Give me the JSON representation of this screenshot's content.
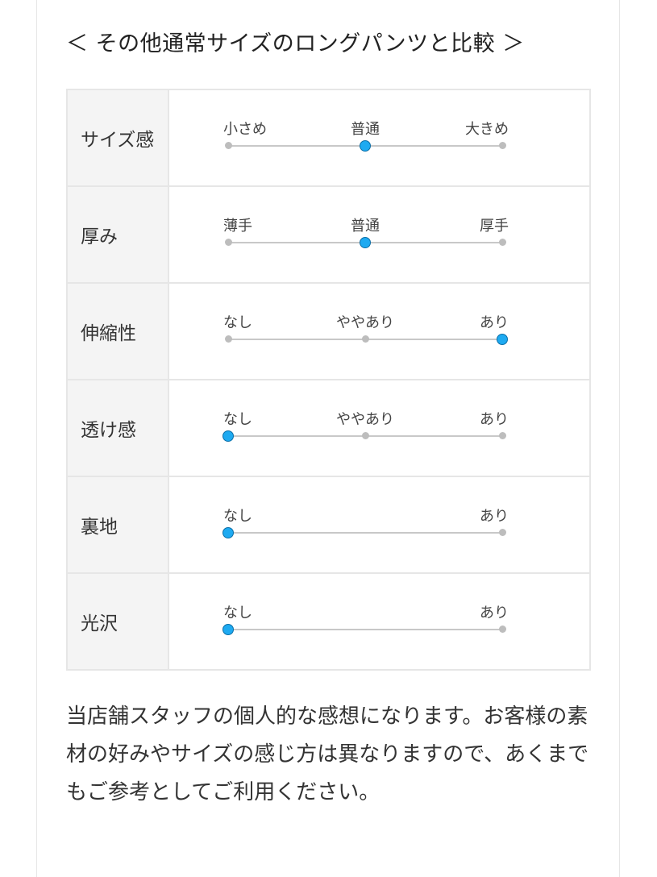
{
  "title": "＜ その他通常サイズのロングパンツと比較 ＞",
  "accent_color": "#1eaaf1",
  "rows": [
    {
      "label": "サイズ感",
      "options": [
        "小さめ",
        "普通",
        "大きめ"
      ],
      "selected": 1
    },
    {
      "label": "厚み",
      "options": [
        "薄手",
        "普通",
        "厚手"
      ],
      "selected": 1
    },
    {
      "label": "伸縮性",
      "options": [
        "なし",
        "ややあり",
        "あり"
      ],
      "selected": 2
    },
    {
      "label": "透け感",
      "options": [
        "なし",
        "ややあり",
        "あり"
      ],
      "selected": 0
    },
    {
      "label": "裏地",
      "options": [
        "なし",
        "あり"
      ],
      "selected": 0
    },
    {
      "label": "光沢",
      "options": [
        "なし",
        "あり"
      ],
      "selected": 0
    }
  ],
  "note": "当店舗スタッフの個人的な感想になります。お客様の素材の好みやサイズの感じ方は異なりますので、あくまでもご参考としてご利用ください。"
}
